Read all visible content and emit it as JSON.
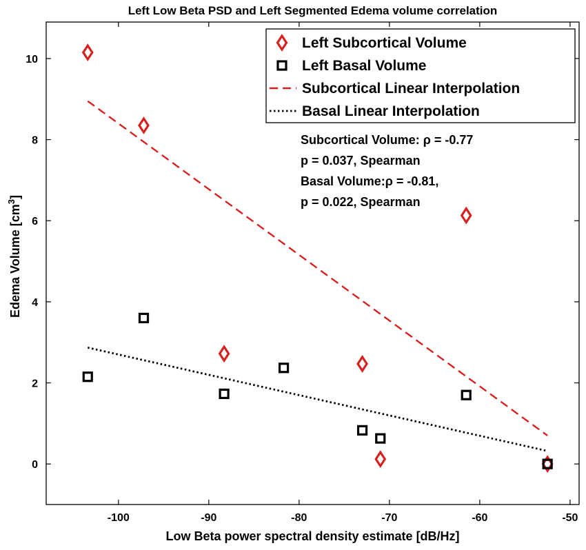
{
  "chart_data": {
    "type": "scatter",
    "title": "Left Low Beta PSD and Left Segmented Edema volume correlation",
    "xlabel": "Low Beta power spectral density estimate [dB/Hz]",
    "ylabel": "Edema Volume [cm",
    "ylabel_superscript": "3",
    "ylabel_suffix": "]",
    "xlim": [
      -108,
      -49
    ],
    "ylim": [
      -1,
      10.9
    ],
    "xticks": [
      -100,
      -90,
      -80,
      -70,
      -60,
      -50
    ],
    "yticks": [
      0,
      2,
      4,
      6,
      8,
      10
    ],
    "series": [
      {
        "name": "Left Subcortical Volume",
        "marker": "diamond",
        "color": "#d62020",
        "x": [
          -103.4,
          -97.2,
          -88.3,
          -73.0,
          -71.0,
          -61.5,
          -52.5
        ],
        "y": [
          10.15,
          8.35,
          2.72,
          2.47,
          0.12,
          6.13,
          0.0
        ]
      },
      {
        "name": "Left Basal Volume",
        "marker": "square",
        "color": "#000000",
        "x": [
          -103.4,
          -97.2,
          -88.3,
          -81.7,
          -73.0,
          -71.0,
          -61.5,
          -52.5
        ],
        "y": [
          2.15,
          3.6,
          1.73,
          2.37,
          0.83,
          0.63,
          1.7,
          0.0
        ]
      },
      {
        "name": "Subcortical Linear Interpolation",
        "style": "dashed",
        "color": "#d62020",
        "x": [
          -103.4,
          -52.5
        ],
        "y": [
          8.95,
          0.7
        ]
      },
      {
        "name": "Basal Linear Interpolation",
        "style": "dotted",
        "color": "#000000",
        "x": [
          -103.4,
          -52.5
        ],
        "y": [
          2.87,
          0.32
        ]
      }
    ],
    "annotations": [
      "Subcortical Volume: ρ = -0.77",
      "p = 0.037, Spearman",
      "Basal Volume:ρ = -0.81,",
      "p = 0.022, Spearman"
    ],
    "legend_position": "top-right",
    "grid": false
  }
}
